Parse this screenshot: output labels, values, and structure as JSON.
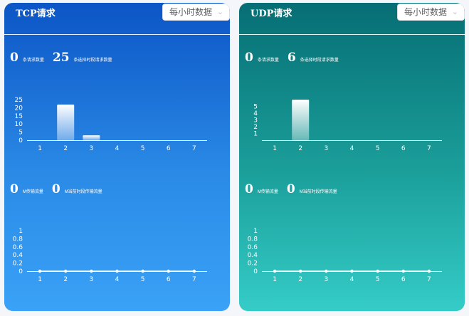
{
  "tcp": {
    "title": "TCP请求",
    "select": "每小时数据",
    "stat1": {
      "value": "0",
      "label": "条请求数量"
    },
    "stat2": {
      "value": "25",
      "label": "条选择时段请求数量"
    },
    "stat3": {
      "value": "0",
      "label": "M传输流量"
    },
    "stat4": {
      "value": "0",
      "label": "M当前时段传输流量"
    }
  },
  "udp": {
    "title": "UDP请求",
    "select": "每小时数据",
    "stat1": {
      "value": "0",
      "label": "条请求数量"
    },
    "stat2": {
      "value": "6",
      "label": "条选择时段请求数量"
    },
    "stat3": {
      "value": "0",
      "label": "M传输流量"
    },
    "stat4": {
      "value": "0",
      "label": "M当前时段传输流量"
    }
  },
  "icons": {
    "select": "chevron-down-icon"
  },
  "chart_data": [
    {
      "type": "bar",
      "categories": [
        "1",
        "2",
        "3",
        "4",
        "5",
        "6",
        "7"
      ],
      "values": [
        0,
        22,
        3,
        0,
        0,
        0,
        0
      ],
      "yticks": [
        "0",
        "5",
        "10",
        "15",
        "20",
        "25"
      ],
      "ylim": [
        0,
        25
      ]
    },
    {
      "type": "line",
      "categories": [
        "1",
        "2",
        "3",
        "4",
        "5",
        "6",
        "7"
      ],
      "values": [
        0,
        0,
        0,
        0,
        0,
        0,
        0
      ],
      "yticks": [
        "0",
        "0.2",
        "0.4",
        "0.6",
        "0.8",
        "1"
      ],
      "ylim": [
        0,
        1
      ]
    },
    {
      "type": "bar",
      "categories": [
        "1",
        "2",
        "3",
        "4",
        "5",
        "6",
        "7"
      ],
      "values": [
        0,
        6,
        0,
        0,
        0,
        0,
        0
      ],
      "yticks": [
        "1",
        "2",
        "3",
        "4",
        "5"
      ],
      "ylim": [
        0,
        6
      ]
    },
    {
      "type": "line",
      "categories": [
        "1",
        "2",
        "3",
        "4",
        "5",
        "6",
        "7"
      ],
      "values": [
        0,
        0,
        0,
        0,
        0,
        0,
        0
      ],
      "yticks": [
        "0",
        "0.2",
        "0.4",
        "0.6",
        "0.8",
        "1"
      ],
      "ylim": [
        0,
        1
      ]
    }
  ]
}
